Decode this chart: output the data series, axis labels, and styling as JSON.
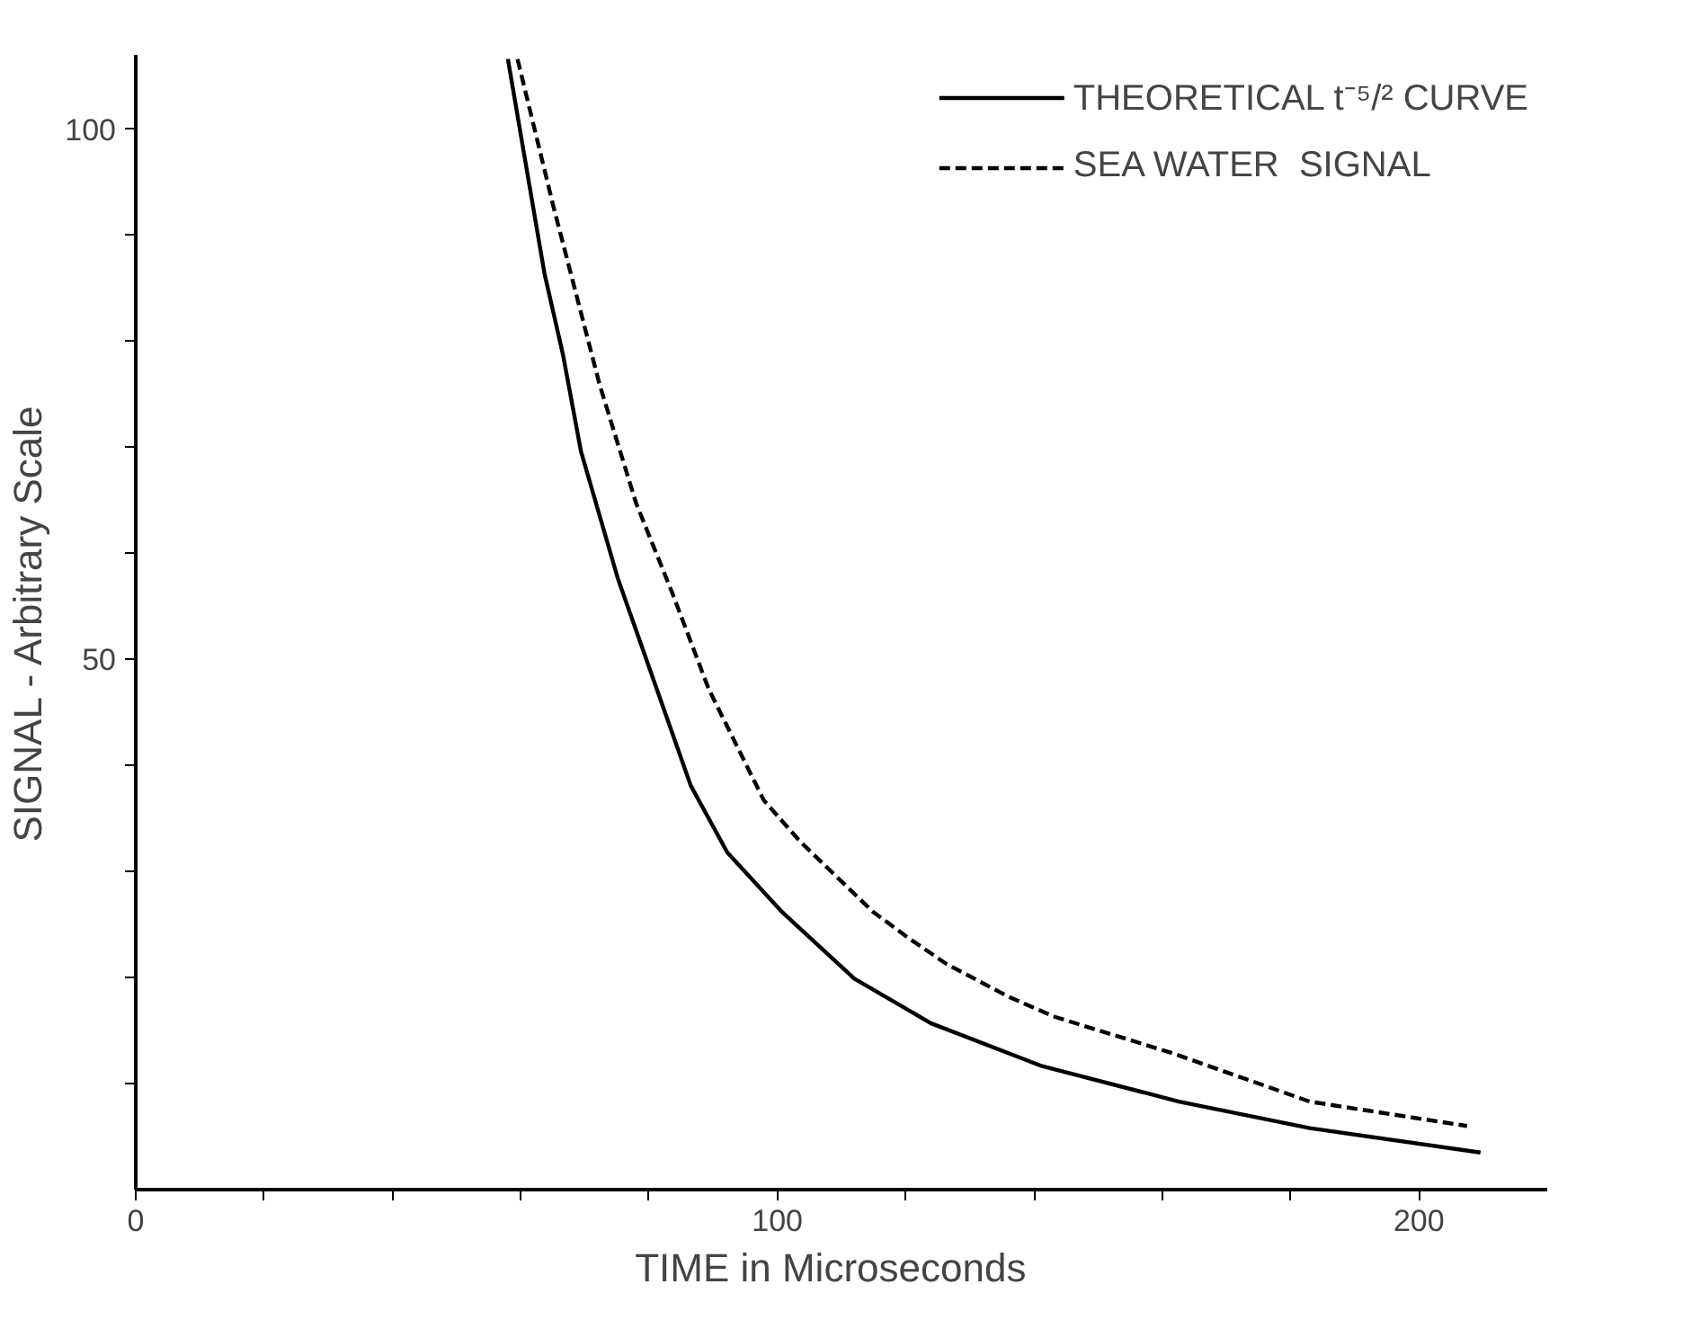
{
  "chart_data": {
    "type": "line",
    "xlabel": "TIME  in  Microseconds",
    "ylabel": "SIGNAL - Arbitrary Scale",
    "xlim": [
      0,
      220
    ],
    "ylim": [
      0,
      107
    ],
    "xticks": [
      0,
      {
        "value": 20,
        "label": null
      },
      {
        "value": 40,
        "label": null
      },
      {
        "value": 60,
        "label": null
      },
      {
        "value": 80,
        "label": null
      },
      100,
      {
        "value": 120,
        "label": null
      },
      {
        "value": 140,
        "label": null
      },
      {
        "value": 160,
        "label": null
      },
      {
        "value": 180,
        "label": null
      },
      200
    ],
    "yticks": [
      {
        "value": 10,
        "label": null
      },
      {
        "value": 20,
        "label": null
      },
      {
        "value": 30,
        "label": null
      },
      {
        "value": 40,
        "label": null
      },
      50,
      {
        "value": 60,
        "label": null
      },
      {
        "value": 70,
        "label": null
      },
      {
        "value": 80,
        "label": null
      },
      {
        "value": 90,
        "label": null
      },
      100
    ],
    "grid": false,
    "legend": "top right",
    "series": [
      {
        "name": "THEORETICAL t⁻⁵/² CURVE",
        "color": "#000000",
        "line_style": "solid",
        "x": [
          58,
          63.7,
          66.6,
          69.4,
          75.1,
          80.8,
          86.5,
          92.2,
          100.7,
          112,
          123.9,
          141,
          162.6,
          183,
          209.6
        ],
        "values": [
          106.6,
          86.4,
          78.7,
          69.6,
          57.7,
          47.9,
          38.1,
          31.8,
          26.2,
          19.9,
          15.7,
          11.7,
          8.3,
          5.8,
          3.5
        ]
      },
      {
        "name": "SEA WATER  SIGNAL",
        "color": "#000000",
        "line_style": "dashed",
        "x": [
          59.5,
          65.1,
          72.3,
          78,
          83.6,
          89.3,
          97.9,
          103.6,
          114.9,
          120.5,
          126.3,
          136,
          143.2,
          161.4,
          183,
          207.5
        ],
        "values": [
          106.6,
          92.7,
          75.9,
          64.7,
          56.3,
          47.2,
          36.7,
          32.8,
          26.2,
          23.7,
          21.3,
          18.2,
          16.3,
          12.9,
          8.3,
          6.0
        ]
      }
    ]
  }
}
